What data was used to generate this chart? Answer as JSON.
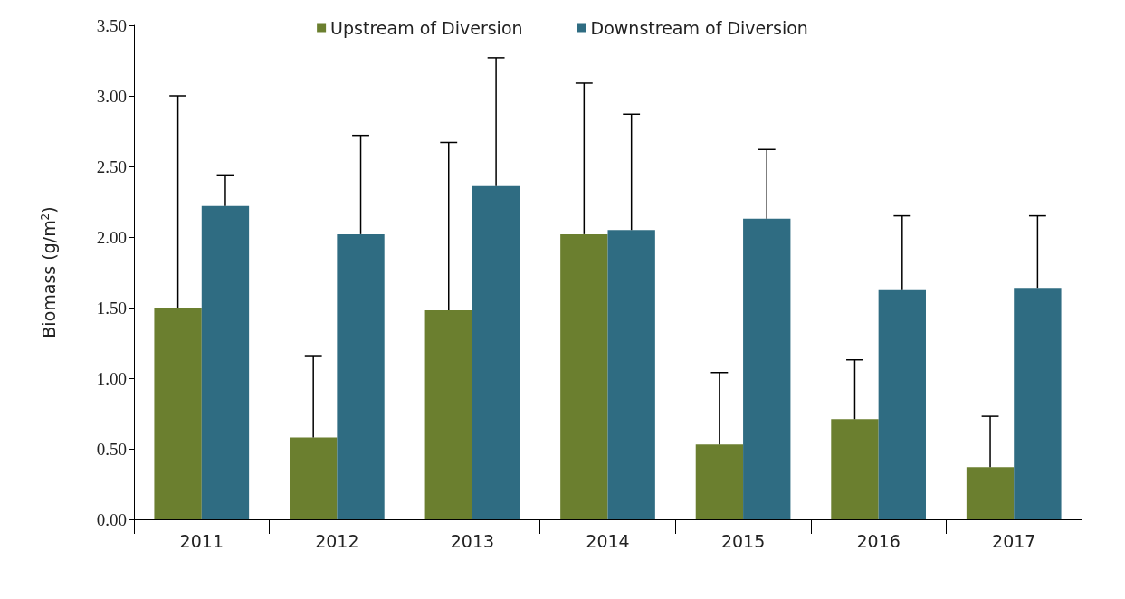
{
  "chart_data": {
    "type": "bar",
    "ylabel": "Biomass (g/m$^{2}$)",
    "categories": [
      "2011",
      "2012",
      "2013",
      "2014",
      "2015",
      "2016",
      "2017"
    ],
    "series": [
      {
        "name": "Upstream of Diversion",
        "color": "#6b7f2f",
        "values": [
          1.5,
          0.58,
          1.48,
          2.02,
          0.53,
          0.71,
          0.37
        ],
        "errors": [
          [
            1.5,
            3.0
          ],
          [
            0.58,
            1.16
          ],
          [
            1.48,
            2.67
          ],
          [
            2.02,
            3.09
          ],
          [
            0.53,
            1.04
          ],
          [
            0.71,
            1.13
          ],
          [
            0.37,
            0.73
          ]
        ]
      },
      {
        "name": "Downstream of Diversion",
        "color": "#2f6c82",
        "values": [
          2.22,
          2.02,
          2.36,
          2.05,
          2.13,
          1.63,
          1.64
        ],
        "errors": [
          [
            2.22,
            2.44
          ],
          [
            2.02,
            2.72
          ],
          [
            2.36,
            3.27
          ],
          [
            2.05,
            2.87
          ],
          [
            2.13,
            2.62
          ],
          [
            1.63,
            2.15
          ],
          [
            1.64,
            2.15
          ]
        ]
      }
    ],
    "ylim": [
      0,
      3.5
    ],
    "yticks": [
      {
        "value": 0,
        "label": "0.00"
      },
      {
        "value": 0.5,
        "label": "0.50"
      },
      {
        "value": 1,
        "label": "1.00"
      },
      {
        "value": 1.5,
        "label": "1.50"
      },
      {
        "value": 2,
        "label": "2.00"
      },
      {
        "value": 2.5,
        "label": "2.50"
      },
      {
        "value": 3,
        "label": "3.00"
      },
      {
        "value": 3.5,
        "label": "3.50"
      }
    ],
    "grid": false,
    "legend": "top"
  }
}
